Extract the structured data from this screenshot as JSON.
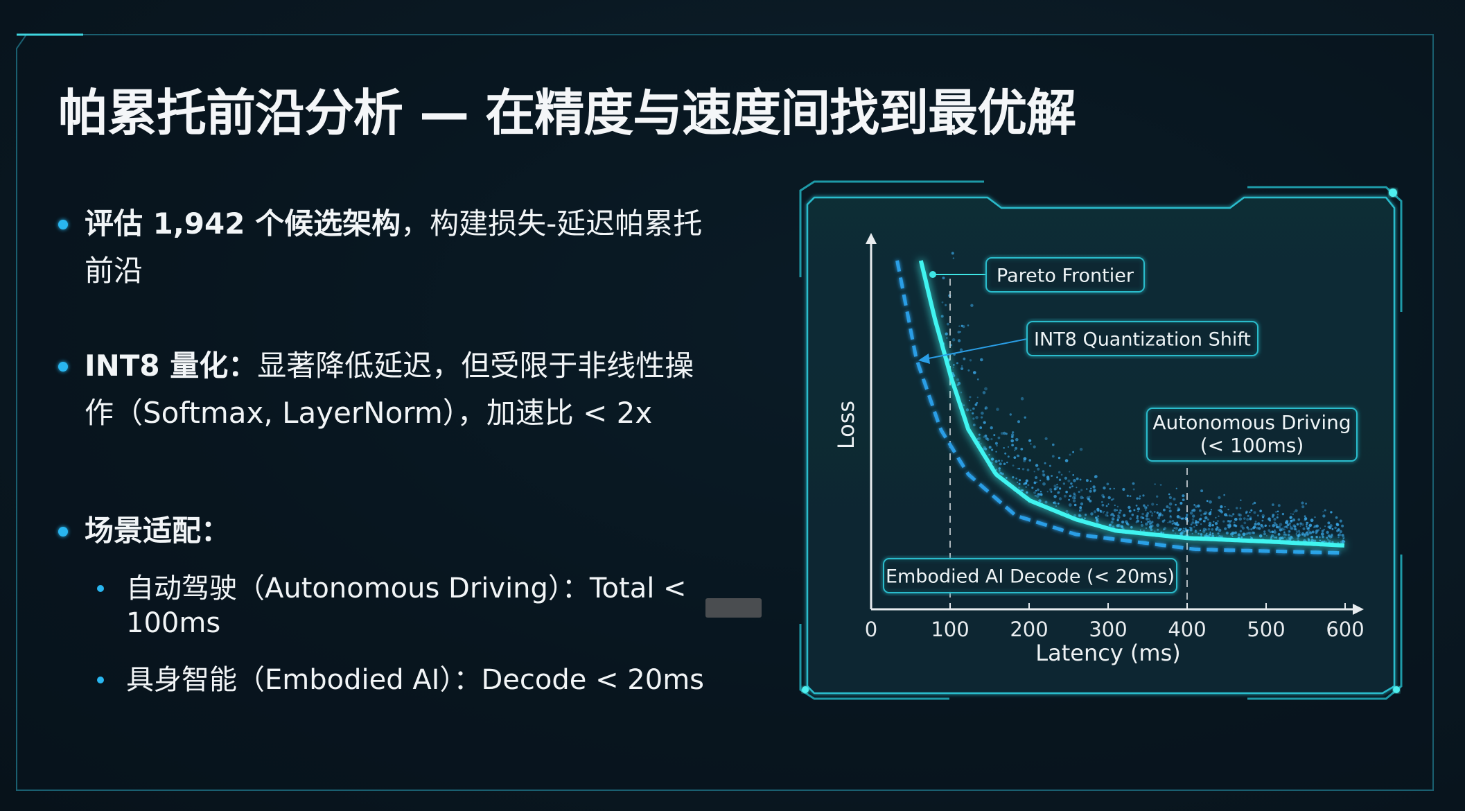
{
  "slide": {
    "title": "帕累托前沿分析 — 在精度与速度间找到最优解",
    "bullets": [
      {
        "bold": "评估 1,942 个候选架构",
        "text": "，构建损失-延迟帕累托",
        "text2": "前沿"
      },
      {
        "bold": "INT8 量化：",
        "text": "显著降低延迟，但受限于非线性操",
        "text2": "作（Softmax, LayerNorm），加速比 < 2x"
      },
      {
        "bold": "场景适配：",
        "subs": [
          {
            "line1": "自动驾驶（Autonomous Driving）：Total <",
            "line2": "100ms"
          },
          {
            "line1": "具身智能（Embodied AI）：Decode < 20ms"
          }
        ]
      }
    ]
  },
  "colors": {
    "accent": "#29b6f0",
    "frontier": "#3ff4f0",
    "int8": "#2a9ee6",
    "frame": "#1e9aa8"
  },
  "chart_data": {
    "type": "scatter",
    "xlabel": "Latency (ms)",
    "ylabel": "Loss",
    "xlim": [
      0,
      600
    ],
    "xticks": [
      "0",
      "100",
      "200",
      "300",
      "400",
      "500",
      "600"
    ],
    "y_tick_labels": "none",
    "grid": false,
    "series": [
      {
        "name": "Pareto Frontier",
        "style": "solid-glow",
        "x": [
          63,
          80,
          101,
          123,
          158,
          201,
          259,
          309,
          400,
          510,
          600
        ],
        "y": [
          0.93,
          0.78,
          0.62,
          0.48,
          0.36,
          0.29,
          0.24,
          0.21,
          0.19,
          0.18,
          0.17
        ]
      },
      {
        "name": "INT8 Quantization Shift",
        "style": "dashed",
        "x": [
          33,
          57,
          88,
          123,
          183,
          259,
          410,
          600
        ],
        "y": [
          0.93,
          0.67,
          0.48,
          0.36,
          0.25,
          0.2,
          0.16,
          0.15
        ]
      }
    ],
    "reference_lines": [
      {
        "x": 100,
        "label": "Embodied AI Decode (< 20ms)"
      },
      {
        "x": 400,
        "label": "Autonomous Driving\n(< 100ms)",
        "label_line1": "Autonomous Driving",
        "label_line2": "(< 100ms)"
      }
    ],
    "annotations": {
      "pareto": "Pareto Frontier",
      "int8": "INT8 Quantization Shift"
    }
  }
}
